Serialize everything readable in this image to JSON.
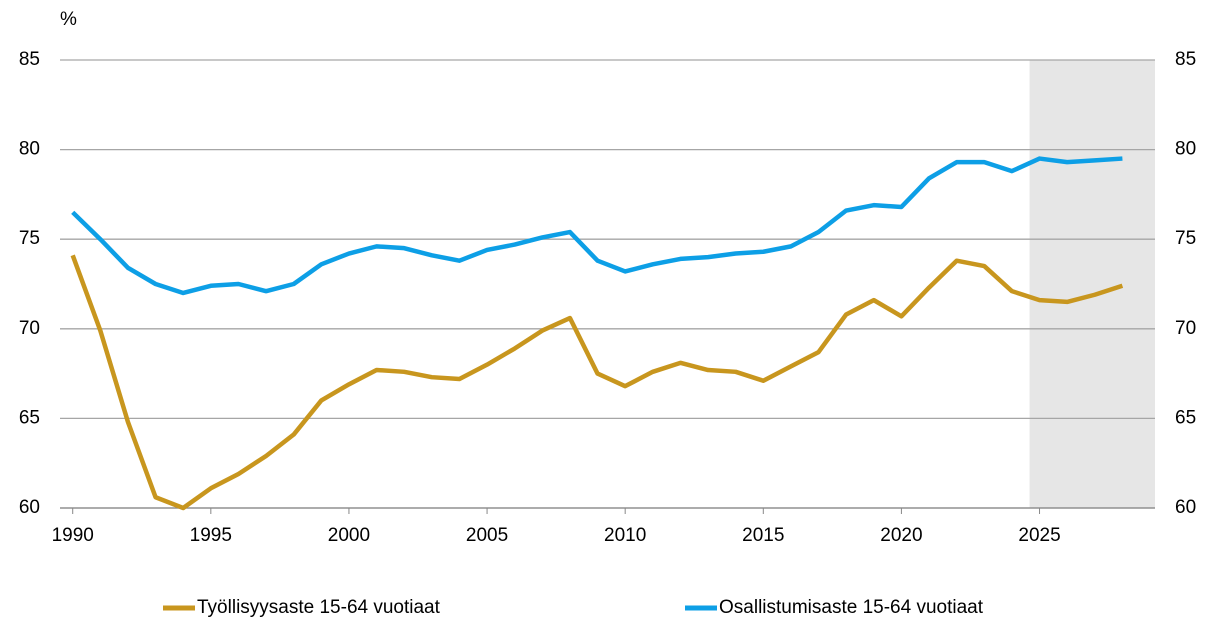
{
  "chart_data": {
    "type": "line",
    "y_label": "%",
    "x": [
      1990,
      1991,
      1992,
      1993,
      1994,
      1995,
      1996,
      1997,
      1998,
      1999,
      2000,
      2001,
      2002,
      2003,
      2004,
      2005,
      2006,
      2007,
      2008,
      2009,
      2010,
      2011,
      2012,
      2013,
      2014,
      2015,
      2016,
      2017,
      2018,
      2019,
      2020,
      2021,
      2022,
      2023,
      2024,
      2025,
      2026,
      2027,
      2028
    ],
    "series": [
      {
        "name": "Työllisyysaste 15-64 vuotiaat",
        "color": "#c8961e",
        "values": [
          74.1,
          69.9,
          64.8,
          60.6,
          60.0,
          61.1,
          61.9,
          62.9,
          64.1,
          66.0,
          66.9,
          67.7,
          67.6,
          67.3,
          67.2,
          68.0,
          68.9,
          69.9,
          70.6,
          67.5,
          66.8,
          67.6,
          68.1,
          67.7,
          67.6,
          67.1,
          67.9,
          68.7,
          70.8,
          71.6,
          70.7,
          72.3,
          73.8,
          73.5,
          72.1,
          71.6,
          71.5,
          71.9,
          72.4
        ]
      },
      {
        "name": "Osallistumisaste 15-64 vuotiaat",
        "color": "#0d9fe6",
        "values": [
          76.5,
          75.0,
          73.4,
          72.5,
          72.0,
          72.4,
          72.5,
          72.1,
          72.5,
          73.6,
          74.2,
          74.6,
          74.5,
          74.1,
          73.8,
          74.4,
          74.7,
          75.1,
          75.4,
          73.8,
          73.2,
          73.6,
          73.9,
          74.0,
          74.2,
          74.3,
          74.6,
          75.4,
          76.6,
          76.9,
          76.8,
          78.4,
          79.3,
          79.3,
          78.8,
          79.5,
          79.3,
          79.4,
          79.5
        ]
      }
    ],
    "xlim": [
      1989.54,
      2029.18
    ],
    "xticks": [
      1990,
      1995,
      2000,
      2005,
      2010,
      2015,
      2020,
      2025
    ],
    "ylim": [
      60,
      85
    ],
    "yticks": [
      60,
      65,
      70,
      75,
      80,
      85
    ],
    "y2lim": [
      60,
      85
    ],
    "y2ticks": [
      60,
      65,
      70,
      75,
      80,
      85
    ],
    "shade_x": [
      2024.64,
      2029.18
    ],
    "shade_color": "#e6e6e6",
    "grid": true,
    "legend": "bottom"
  }
}
